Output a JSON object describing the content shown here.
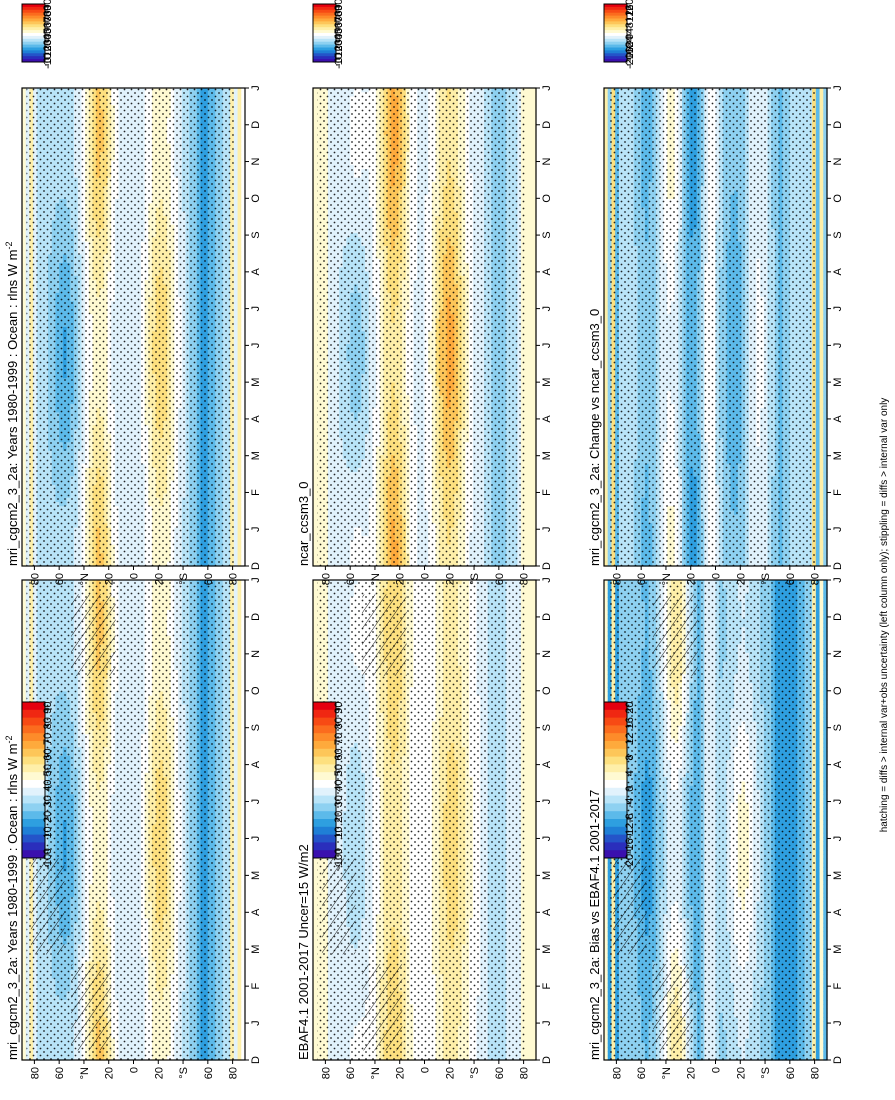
{
  "footnote": "hatching = diffs > internal var+obs uncertainty (left column only); stippling = diffs > internal var only",
  "month_labels": [
    "D",
    "J",
    "F",
    "M",
    "A",
    "M",
    "J",
    "J",
    "A",
    "S",
    "O",
    "N",
    "D",
    "J"
  ],
  "lat_labels": [
    "80",
    "60",
    "°N",
    "20",
    "0",
    "20",
    "°S",
    "60",
    "80"
  ],
  "colors": {
    "abs": [
      "#e5000f",
      "#f02712",
      "#f74a14",
      "#fb6c1e",
      "#fd8c2a",
      "#feaa3c",
      "#fdc659",
      "#fde07f",
      "#feefa9",
      "#fffad2",
      "#ffffff",
      "#e1f2fc",
      "#b9e4f8",
      "#8ed1f1",
      "#5cbaea",
      "#2e9fe0",
      "#1f7fd6",
      "#2454c9",
      "#2a2ebc",
      "#3a10ae"
    ],
    "diff": [
      "#e5000f",
      "#f02712",
      "#f74a14",
      "#fb6c1e",
      "#fd8c2a",
      "#feaa3c",
      "#fdc659",
      "#fde07f",
      "#feefa9",
      "#fffad2",
      "#ffffff",
      "#e1f2fc",
      "#b9e4f8",
      "#8ed1f1",
      "#5cbaea",
      "#2e9fe0",
      "#1f7fd6",
      "#2454c9",
      "#2a2ebc",
      "#3a10ae"
    ]
  },
  "colorbars": {
    "abs_ticks": [
      "90",
      "80",
      "70",
      "60",
      "50",
      "40",
      "30",
      "20",
      "10",
      "0",
      "-10"
    ],
    "diff_ticks": [
      "20",
      "16",
      "12",
      "8",
      "4",
      "0",
      "-4",
      "-8",
      "-12",
      "-16",
      "-20"
    ]
  },
  "chart_data": [
    {
      "type": "heatmap",
      "id": "p1",
      "title": "mri_cgcm2_3_2a: Years 1980-1999 : Ocean : rlns W m",
      "title_sup": "-2",
      "xlabel": "",
      "ylabel": "",
      "y_range": [
        -90,
        90
      ],
      "x": "Dec..Jan (14 months)",
      "colorbar": "abs",
      "pattern": "mean",
      "stipple": true,
      "hatch": true
    },
    {
      "type": "heatmap",
      "id": "p2",
      "title": "mri_cgcm2_3_2a: Years 1980-1999 : Ocean : rlns W m",
      "title_sup": "-2",
      "xlabel": "",
      "ylabel": "",
      "y_range": [
        -90,
        90
      ],
      "colorbar": "abs",
      "pattern": "mean",
      "stipple": true,
      "hatch": false
    },
    {
      "type": "heatmap",
      "id": "p3",
      "title": "EBAF4.1 2001-2017 Uncer=15 W/m2",
      "title_sup": "",
      "xlabel": "",
      "ylabel": "",
      "y_range": [
        -90,
        90
      ],
      "colorbar": "abs",
      "pattern": "obs",
      "stipple": true,
      "hatch": true
    },
    {
      "type": "heatmap",
      "id": "p4",
      "title": "ncar_ccsm3_0",
      "title_sup": "",
      "xlabel": "",
      "ylabel": "",
      "y_range": [
        -90,
        90
      ],
      "colorbar": "abs",
      "pattern": "ncar",
      "stipple": true,
      "hatch": false
    },
    {
      "type": "heatmap",
      "id": "p5",
      "title": "mri_cgcm2_3_2a: Bias vs EBAF4.1 2001-2017",
      "title_sup": "",
      "xlabel": "",
      "ylabel": "",
      "y_range": [
        -90,
        90
      ],
      "colorbar": "diff",
      "pattern": "bias",
      "stipple": true,
      "hatch": true
    },
    {
      "type": "heatmap",
      "id": "p6",
      "title": "mri_cgcm2_3_2a: Change vs ncar_ccsm3_0",
      "title_sup": "",
      "xlabel": "",
      "ylabel": "",
      "y_range": [
        -90,
        90
      ],
      "colorbar": "diff",
      "pattern": "change",
      "stipple": true,
      "hatch": false
    }
  ]
}
